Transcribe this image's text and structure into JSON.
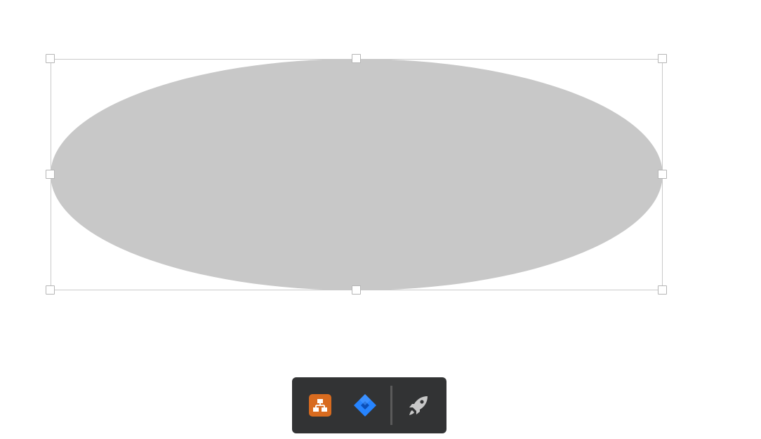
{
  "canvas": {
    "background": "#ffffff"
  },
  "shape": {
    "type": "ellipse",
    "fill": "#c8c8c8",
    "selected": true,
    "selection_border": "#c9c9c9"
  },
  "toolbar": {
    "background": "#323334",
    "items": [
      {
        "name": "diagram-app-icon",
        "color": "#d86b1f"
      },
      {
        "name": "jira-icon",
        "color": "#2684ff"
      },
      {
        "name": "rocket-icon",
        "color": "#c8c8c8"
      }
    ]
  }
}
